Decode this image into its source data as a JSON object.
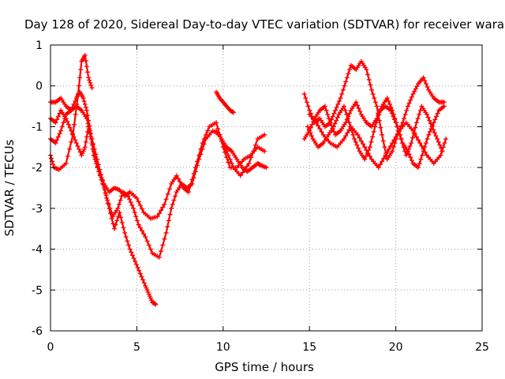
{
  "chart_data": {
    "type": "scatter",
    "title": "Day 128 of 2020, Sidereal Day-to-day VTEC variation (SDTVAR) for receiver wara",
    "xlabel": "GPS time / hours",
    "ylabel": "SDTVAR / TECUs",
    "xlim": [
      0,
      25
    ],
    "ylim": [
      -6,
      1
    ],
    "xticks": [
      "0",
      "5",
      "10",
      "15",
      "20",
      "25"
    ],
    "yticks": [
      "-6",
      "-5",
      "-4",
      "-3",
      "-2",
      "-1",
      "0",
      "1"
    ],
    "grid": true,
    "marker": "plus",
    "color": "#ff0000",
    "series": [
      {
        "x": [
          0.0,
          0.2,
          0.5,
          0.9,
          1.3,
          1.6,
          1.8,
          2.0,
          2.2,
          2.4
        ],
        "y": [
          -1.7,
          -2.0,
          -2.05,
          -1.9,
          -1.2,
          -0.2,
          0.6,
          0.75,
          0.2,
          -0.05
        ]
      },
      {
        "x": [
          0.0,
          0.3,
          0.6,
          0.9,
          1.2,
          1.5,
          1.7,
          1.9,
          2.1,
          2.3,
          2.5,
          2.8,
          3.1,
          3.4,
          3.7,
          4.0,
          4.3,
          4.6,
          5.0,
          5.4,
          5.8,
          6.2,
          6.6,
          7.0,
          7.3,
          7.7,
          8.0,
          8.4,
          8.8,
          9.2,
          9.6,
          10.0,
          10.4,
          10.8,
          11.2,
          11.6,
          12.0,
          12.4
        ],
        "y": [
          -0.4,
          -0.4,
          -0.3,
          -0.5,
          -0.6,
          -0.3,
          -0.15,
          -0.3,
          -0.6,
          -1.1,
          -1.7,
          -2.1,
          -2.4,
          -2.6,
          -2.5,
          -2.55,
          -2.7,
          -2.6,
          -2.75,
          -3.1,
          -3.25,
          -3.2,
          -2.9,
          -2.4,
          -2.2,
          -2.5,
          -2.6,
          -2.0,
          -1.4,
          -1.0,
          -0.9,
          -1.5,
          -2.0,
          -2.0,
          -1.8,
          -1.7,
          -1.5,
          -1.6
        ]
      },
      {
        "x": [
          0.0,
          0.3,
          0.6,
          0.9,
          1.2,
          1.5,
          1.8,
          2.1,
          2.4,
          2.7,
          3.0,
          3.3,
          3.6,
          3.9,
          4.2,
          4.5,
          4.8,
          5.1,
          5.5,
          5.9,
          6.3,
          6.7,
          7.0,
          7.3,
          7.6,
          7.9,
          8.2,
          8.6,
          9.0,
          9.4,
          9.8,
          10.2,
          10.6,
          11.0,
          11.5,
          12.0,
          12.4
        ],
        "y": [
          -1.3,
          -1.4,
          -1.1,
          -0.7,
          -0.6,
          -0.5,
          -0.6,
          -0.8,
          -1.3,
          -1.8,
          -2.3,
          -2.8,
          -3.2,
          -3.0,
          -2.6,
          -2.7,
          -3.0,
          -3.4,
          -3.7,
          -4.1,
          -4.2,
          -3.6,
          -3.0,
          -2.6,
          -2.4,
          -2.5,
          -2.4,
          -1.8,
          -1.3,
          -1.1,
          -1.2,
          -1.6,
          -2.0,
          -2.2,
          -1.9,
          -1.3,
          -1.2
        ]
      },
      {
        "x": [
          0.0,
          0.3,
          0.6,
          0.9,
          1.2,
          1.5,
          1.8,
          2.0,
          2.2,
          2.5,
          2.8,
          3.1,
          3.4,
          3.7,
          4.0,
          4.3,
          4.6,
          4.9,
          5.2,
          5.5,
          5.7,
          5.9,
          6.1
        ],
        "y": [
          -0.8,
          -0.9,
          -0.6,
          -0.8,
          -1.1,
          -1.4,
          -1.7,
          -1.5,
          -1.0,
          -1.6,
          -2.1,
          -2.5,
          -3.0,
          -3.5,
          -3.1,
          -3.6,
          -4.0,
          -4.3,
          -4.6,
          -4.9,
          -5.1,
          -5.3,
          -5.35
        ]
      },
      {
        "x": [
          9.6,
          9.8,
          10.0,
          10.2,
          10.4,
          10.6
        ],
        "y": [
          -0.15,
          -0.3,
          -0.4,
          -0.5,
          -0.6,
          -0.65
        ]
      },
      {
        "x": [
          9.6,
          9.9,
          10.2,
          10.5,
          10.8,
          11.1,
          11.4,
          11.7,
          12.0,
          12.2,
          12.5
        ],
        "y": [
          -1.1,
          -1.3,
          -1.5,
          -1.6,
          -1.8,
          -2.0,
          -2.1,
          -2.0,
          -1.9,
          -1.95,
          -2.0
        ]
      },
      {
        "x": [
          14.7,
          15.0,
          15.3,
          15.6,
          15.9,
          16.2,
          16.5,
          16.8,
          17.1,
          17.4,
          17.7,
          18.0,
          18.3,
          18.6,
          18.9,
          19.2,
          19.5,
          19.8,
          20.1,
          20.4,
          20.7,
          21.0,
          21.3,
          21.6,
          21.9,
          22.2,
          22.5,
          22.8
        ],
        "y": [
          -0.2,
          -0.6,
          -0.9,
          -0.8,
          -1.0,
          -0.9,
          -0.6,
          -0.3,
          0.1,
          0.5,
          0.4,
          0.6,
          0.4,
          -0.1,
          -0.5,
          -1.2,
          -1.8,
          -1.6,
          -1.2,
          -0.9,
          -0.5,
          -0.2,
          0.05,
          0.2,
          -0.1,
          -0.3,
          -0.4,
          -0.4
        ]
      },
      {
        "x": [
          14.7,
          15.0,
          15.3,
          15.6,
          15.9,
          16.2,
          16.5,
          16.8,
          17.1,
          17.4,
          17.7,
          18.0,
          18.3,
          18.6,
          18.9,
          19.2,
          19.5,
          19.8,
          20.1,
          20.4,
          20.7,
          21.0,
          21.3,
          21.6,
          21.9,
          22.2,
          22.5,
          22.8
        ],
        "y": [
          -1.3,
          -1.1,
          -0.8,
          -0.6,
          -0.5,
          -0.9,
          -1.2,
          -1.1,
          -0.9,
          -0.6,
          -0.4,
          -0.7,
          -0.9,
          -1.0,
          -0.8,
          -0.5,
          -0.3,
          -0.6,
          -1.0,
          -1.4,
          -1.6,
          -1.9,
          -2.0,
          -1.6,
          -1.2,
          -0.9,
          -0.6,
          -0.5
        ]
      },
      {
        "x": [
          14.9,
          15.2,
          15.5,
          15.8,
          16.1,
          16.4,
          16.7,
          17.0,
          17.3,
          17.6,
          17.9,
          18.2,
          18.5,
          18.8,
          19.1,
          19.4,
          19.7,
          20.0,
          20.3,
          20.6,
          20.9,
          21.2,
          21.5,
          21.8,
          22.1,
          22.4,
          22.7
        ],
        "y": [
          -1.0,
          -1.3,
          -1.5,
          -1.4,
          -1.2,
          -1.0,
          -0.7,
          -0.5,
          -0.9,
          -1.3,
          -1.6,
          -1.8,
          -1.5,
          -1.0,
          -0.6,
          -0.5,
          -0.6,
          -0.9,
          -1.3,
          -1.7,
          -1.4,
          -0.9,
          -0.5,
          -0.7,
          -1.0,
          -1.3,
          -1.6
        ]
      },
      {
        "x": [
          15.0,
          15.4,
          15.8,
          16.2,
          16.6,
          17.0,
          17.4,
          17.8,
          18.2,
          18.6,
          19.0,
          19.4,
          19.8,
          20.2,
          20.6,
          21.0,
          21.4,
          21.8,
          22.2,
          22.6,
          22.9
        ],
        "y": [
          -0.7,
          -0.9,
          -1.2,
          -1.4,
          -1.5,
          -1.3,
          -1.0,
          -1.2,
          -1.5,
          -1.8,
          -2.0,
          -1.7,
          -1.4,
          -1.1,
          -0.9,
          -1.1,
          -1.4,
          -1.7,
          -1.9,
          -1.7,
          -1.3
        ]
      }
    ]
  }
}
